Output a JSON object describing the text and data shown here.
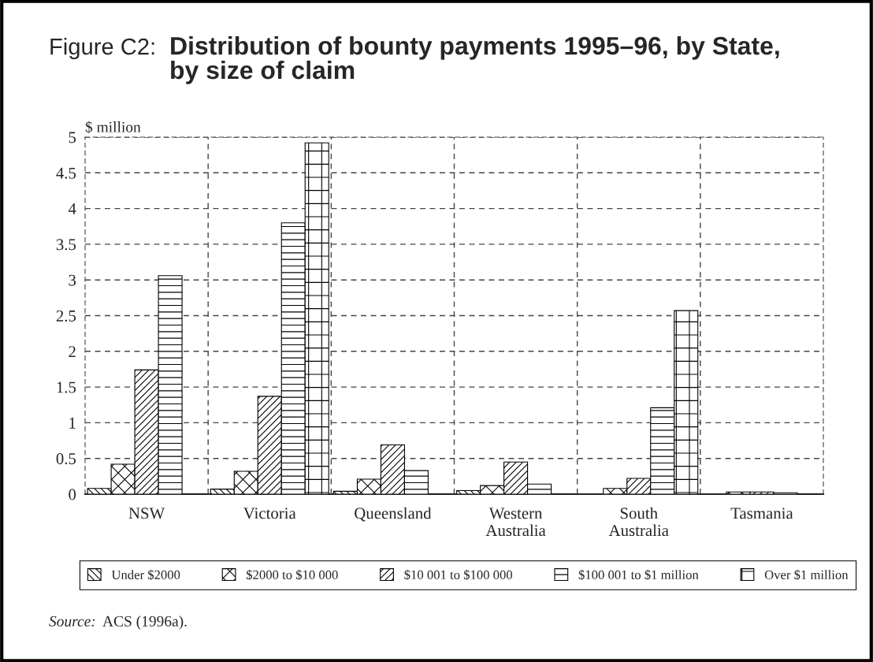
{
  "chart_data": {
    "type": "bar",
    "title": "Figure C2:",
    "subtitle": "Distribution of bounty payments 1995–96, by State,\nby size of claim",
    "ylabel": "$ million",
    "categories": [
      "NSW",
      "Victoria",
      "Queensland",
      "Western\nAustralia",
      "South\nAustralia",
      "Tasmania"
    ],
    "series": [
      {
        "name": "Under $2000",
        "color": "#000000",
        "values": [
          0.08,
          0.07,
          0.04,
          0.05,
          null,
          null
        ]
      },
      {
        "name": "$2000 to $10 000",
        "color": "#000000",
        "values": [
          0.42,
          0.32,
          0.21,
          0.12,
          0.08,
          0.03
        ]
      },
      {
        "name": "$10 001 to $100 000",
        "color": "#000000",
        "values": [
          1.74,
          1.37,
          0.69,
          0.45,
          0.22,
          0.03
        ]
      },
      {
        "name": "$100 001 to $1 million",
        "color": "#000000",
        "values": [
          3.06,
          3.8,
          0.33,
          0.14,
          1.21,
          0.02
        ]
      },
      {
        "name": "Over $1 million",
        "color": "#000000",
        "values": [
          0,
          4.92,
          0,
          0,
          2.57,
          0
        ]
      }
    ],
    "ylim": [
      0,
      5
    ],
    "yticks": [
      0,
      0.5,
      1,
      1.5,
      2,
      2.5,
      3,
      3.5,
      4,
      4.5,
      5
    ],
    "grid": true,
    "legend": "bottom",
    "annotations": [
      "Source:",
      "ACS (1996a)."
    ]
  }
}
